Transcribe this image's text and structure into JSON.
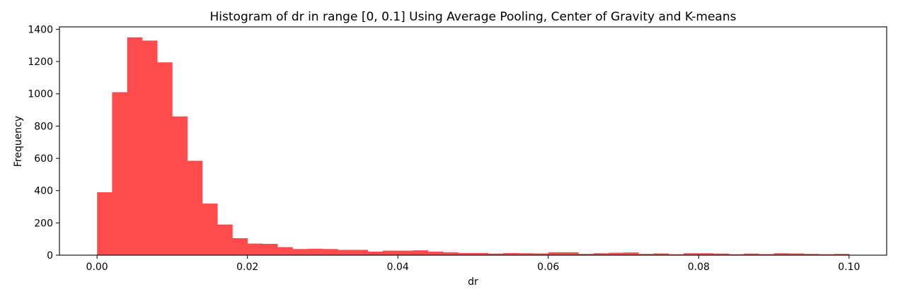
{
  "chart_data": {
    "type": "bar",
    "title": "Histogram of dr in range [0, 0.1] Using Average Pooling, Center of Gravity and K-means",
    "xlabel": "dr",
    "ylabel": "Frequency",
    "xlim": [
      -0.005,
      0.105
    ],
    "ylim": [
      0,
      1415
    ],
    "xticks": [
      0.0,
      0.02,
      0.04,
      0.06,
      0.08,
      0.1
    ],
    "xtick_labels": [
      "0.00",
      "0.02",
      "0.04",
      "0.06",
      "0.08",
      "0.10"
    ],
    "yticks": [
      0,
      200,
      400,
      600,
      800,
      1000,
      1200,
      1400
    ],
    "ytick_labels": [
      "0",
      "200",
      "400",
      "600",
      "800",
      "1000",
      "1200",
      "1400"
    ],
    "bin_start": 0.0,
    "bin_end": 0.1,
    "values": [
      390,
      1010,
      1350,
      1330,
      1195,
      860,
      585,
      320,
      190,
      105,
      72,
      70,
      50,
      38,
      40,
      38,
      33,
      33,
      22,
      28,
      28,
      30,
      22,
      18,
      14,
      14,
      10,
      13,
      12,
      11,
      18,
      18,
      8,
      12,
      15,
      17,
      8,
      11,
      6,
      12,
      12,
      10,
      6,
      10,
      7,
      12,
      11,
      8,
      6,
      8
    ],
    "color": "#ff4b4b",
    "grid": false
  }
}
